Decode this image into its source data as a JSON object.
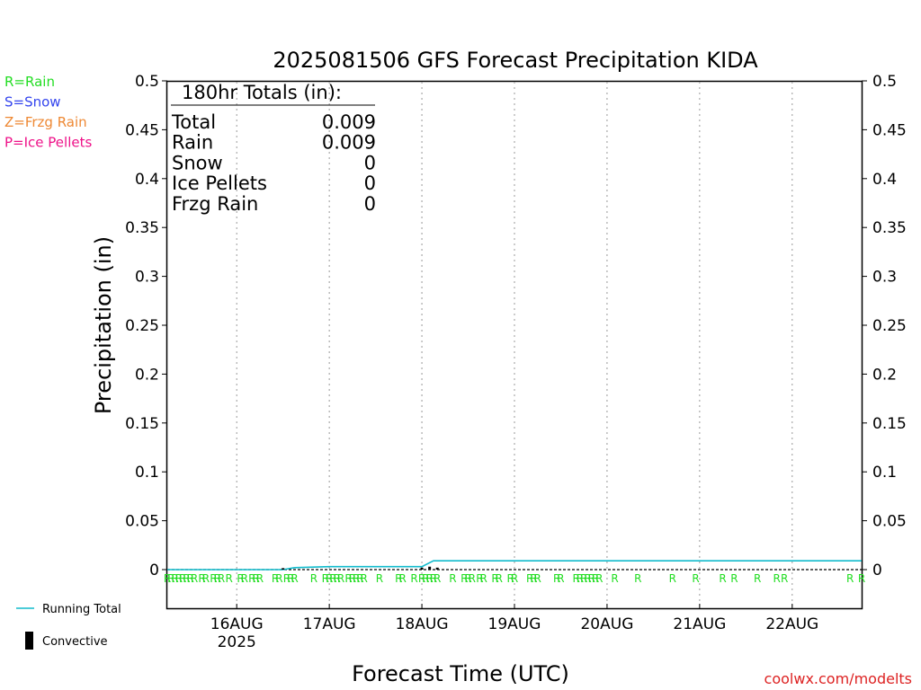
{
  "colors": {
    "rain": "#22dd22",
    "snow": "#3344ee",
    "frzg_rain": "#ee8833",
    "ice_pellets": "#ee1188",
    "running_total": "#11bbcc",
    "convective": "#000000",
    "credit": "#dd2222"
  },
  "ptype_legend": [
    {
      "label": "R=Rain",
      "color_key": "rain"
    },
    {
      "label": "S=Snow",
      "color_key": "snow"
    },
    {
      "label": "Z=Frzg Rain",
      "color_key": "frzg_rain"
    },
    {
      "label": "P=Ice Pellets",
      "color_key": "ice_pellets"
    }
  ],
  "series_legend": {
    "running_total": "Running Total",
    "convective": "Convective"
  },
  "totals_box": {
    "heading": "180hr Totals (in):",
    "rows": [
      {
        "label": "Total",
        "value": "0.009"
      },
      {
        "label": "Rain",
        "value": "0.009"
      },
      {
        "label": "Snow",
        "value": "0"
      },
      {
        "label": "Ice Pellets",
        "value": "0"
      },
      {
        "label": "Frzg Rain",
        "value": "0"
      }
    ]
  },
  "credit": "coolwx.com/modelts",
  "chart_data": {
    "type": "line",
    "title": "2025081506 GFS Forecast Precipitation KIDA",
    "xlabel": "Forecast Time (UTC)",
    "ylabel": "Precipitation (in)",
    "ylim": [
      0,
      0.5
    ],
    "xlim": [
      "2025-08-15T06",
      "2025-08-22T18"
    ],
    "yticks": [
      "0",
      "0.05",
      "0.1",
      "0.15",
      "0.2",
      "0.25",
      "0.3",
      "0.35",
      "0.4",
      "0.45",
      "0.5"
    ],
    "ytick_values": [
      0,
      0.05,
      0.1,
      0.15,
      0.2,
      0.25,
      0.3,
      0.35,
      0.4,
      0.45,
      0.5
    ],
    "xticks": [
      {
        "t": "2025-08-16T00",
        "label": "16AUG",
        "sublabel": "2025"
      },
      {
        "t": "2025-08-17T00",
        "label": "17AUG",
        "sublabel": ""
      },
      {
        "t": "2025-08-18T00",
        "label": "18AUG",
        "sublabel": ""
      },
      {
        "t": "2025-08-19T00",
        "label": "19AUG",
        "sublabel": ""
      },
      {
        "t": "2025-08-20T00",
        "label": "20AUG",
        "sublabel": ""
      },
      {
        "t": "2025-08-21T00",
        "label": "21AUG",
        "sublabel": ""
      },
      {
        "t": "2025-08-22T00",
        "label": "22AUG",
        "sublabel": ""
      }
    ],
    "grid": "vertical-dotted",
    "series": [
      {
        "name": "Running Total",
        "color_key": "running_total",
        "points": [
          {
            "t": "2025-08-15T06",
            "y": 0
          },
          {
            "t": "2025-08-16T12",
            "y": 0
          },
          {
            "t": "2025-08-16T15",
            "y": 0.002
          },
          {
            "t": "2025-08-17T00",
            "y": 0.003
          },
          {
            "t": "2025-08-18T00",
            "y": 0.003
          },
          {
            "t": "2025-08-18T03",
            "y": 0.009
          },
          {
            "t": "2025-08-22T18",
            "y": 0.009
          }
        ]
      },
      {
        "name": "Convective",
        "color_key": "convective",
        "bars": [
          {
            "t": "2025-08-16T12",
            "y": 0.0015
          },
          {
            "t": "2025-08-18T00",
            "y": 0.002
          },
          {
            "t": "2025-08-18T02",
            "y": 0.003
          },
          {
            "t": "2025-08-18T04",
            "y": 0.002
          }
        ]
      }
    ],
    "ptype_row": {
      "marker": "R",
      "color_key": "rain",
      "times": [
        "2025-08-15T06",
        "2025-08-15T07",
        "2025-08-15T08",
        "2025-08-15T09",
        "2025-08-15T10",
        "2025-08-15T11",
        "2025-08-15T12",
        "2025-08-15T13",
        "2025-08-15T15",
        "2025-08-15T16",
        "2025-08-15T18",
        "2025-08-15T19",
        "2025-08-15T20",
        "2025-08-15T22",
        "2025-08-16T01",
        "2025-08-16T02",
        "2025-08-16T04",
        "2025-08-16T05",
        "2025-08-16T06",
        "2025-08-16T10",
        "2025-08-16T11",
        "2025-08-16T13",
        "2025-08-16T14",
        "2025-08-16T15",
        "2025-08-16T20",
        "2025-08-16T23",
        "2025-08-17T00",
        "2025-08-17T01",
        "2025-08-17T02",
        "2025-08-17T03",
        "2025-08-17T05",
        "2025-08-17T06",
        "2025-08-17T07",
        "2025-08-17T08",
        "2025-08-17T09",
        "2025-08-17T13",
        "2025-08-17T18",
        "2025-08-17T19",
        "2025-08-17T22",
        "2025-08-18T00",
        "2025-08-18T01",
        "2025-08-18T02",
        "2025-08-18T03",
        "2025-08-18T04",
        "2025-08-18T08",
        "2025-08-18T11",
        "2025-08-18T12",
        "2025-08-18T13",
        "2025-08-18T15",
        "2025-08-18T16",
        "2025-08-18T19",
        "2025-08-18T20",
        "2025-08-18T23",
        "2025-08-19T00",
        "2025-08-19T04",
        "2025-08-19T05",
        "2025-08-19T06",
        "2025-08-19T11",
        "2025-08-19T12",
        "2025-08-19T16",
        "2025-08-19T17",
        "2025-08-19T18",
        "2025-08-19T19",
        "2025-08-19T20",
        "2025-08-19T21",
        "2025-08-19T22",
        "2025-08-20T02",
        "2025-08-20T08",
        "2025-08-20T17",
        "2025-08-20T23",
        "2025-08-21T06",
        "2025-08-21T09",
        "2025-08-21T15",
        "2025-08-21T20",
        "2025-08-21T22",
        "2025-08-22T15",
        "2025-08-22T18"
      ]
    }
  }
}
